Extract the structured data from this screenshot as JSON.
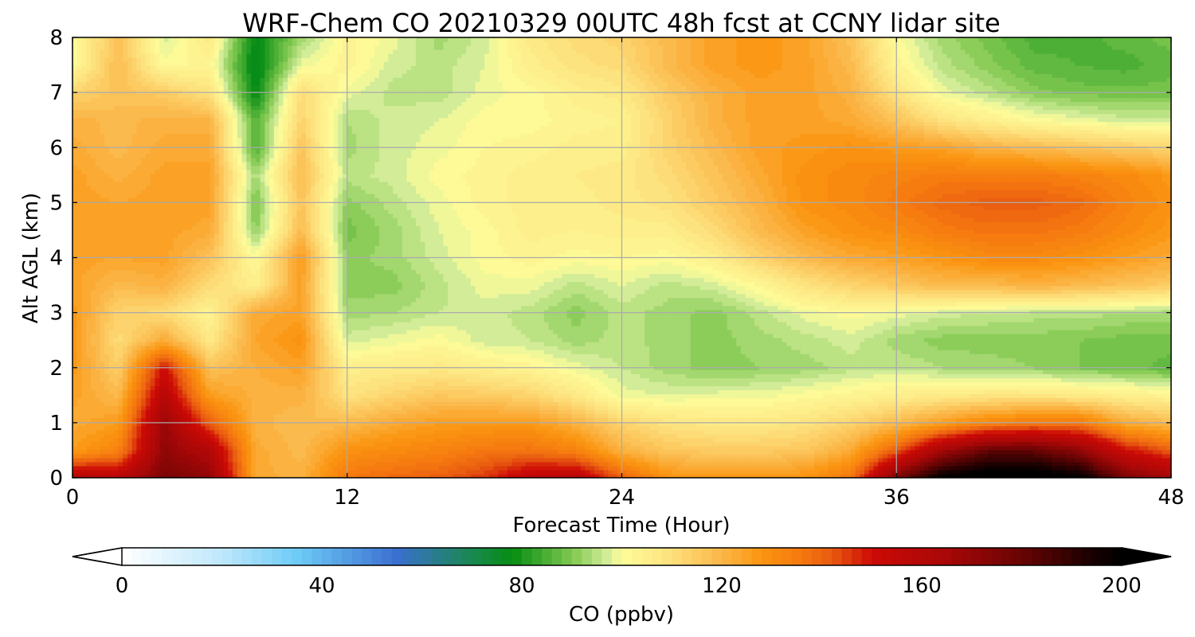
{
  "chart_data": {
    "type": "heatmap",
    "title": "WRF-Chem CO  20210329 00UTC 48h fcst at CCNY lidar site",
    "xlabel": "Forecast Time (Hour)",
    "ylabel": "Alt AGL (km)",
    "xlim": [
      0,
      48
    ],
    "ylim": [
      0,
      8
    ],
    "x_ticks": [
      "0",
      "12",
      "24",
      "36",
      "48"
    ],
    "y_ticks": [
      "0",
      "1",
      "2",
      "3",
      "4",
      "5",
      "6",
      "7",
      "8"
    ],
    "grid": true,
    "x": [
      0,
      2,
      4,
      6,
      8,
      10,
      12,
      14,
      16,
      18,
      20,
      22,
      24,
      26,
      28,
      30,
      32,
      34,
      36,
      38,
      40,
      42,
      44,
      46,
      48
    ],
    "y": [
      0,
      0.5,
      1,
      1.5,
      2,
      2.5,
      3,
      3.5,
      4,
      4.5,
      5,
      5.5,
      6,
      6.5,
      7,
      7.5,
      8
    ],
    "z_units": "ppbv",
    "z": [
      [
        160,
        158,
        175,
        170,
        122,
        120,
        135,
        138,
        140,
        145,
        155,
        158,
        140,
        128,
        126,
        126,
        128,
        135,
        175,
        200,
        205,
        205,
        200,
        175,
        165
      ],
      [
        125,
        132,
        170,
        160,
        122,
        118,
        128,
        130,
        132,
        135,
        136,
        132,
        120,
        115,
        114,
        114,
        115,
        122,
        140,
        165,
        180,
        180,
        170,
        150,
        140
      ],
      [
        122,
        125,
        168,
        140,
        120,
        117,
        118,
        122,
        125,
        126,
        126,
        120,
        112,
        108,
        106,
        106,
        108,
        112,
        118,
        125,
        132,
        135,
        135,
        122,
        118
      ],
      [
        124,
        118,
        158,
        125,
        120,
        120,
        108,
        112,
        115,
        114,
        112,
        106,
        98,
        97,
        98,
        98,
        100,
        102,
        104,
        106,
        107,
        107,
        106,
        104,
        102
      ],
      [
        126,
        113,
        150,
        116,
        121,
        124,
        104,
        105,
        106,
        104,
        102,
        98,
        95,
        92,
        90,
        91,
        92,
        94,
        95,
        93,
        92,
        91,
        89,
        88,
        86
      ],
      [
        126,
        110,
        122,
        106,
        123,
        128,
        96,
        98,
        100,
        96,
        95,
        92,
        94,
        92,
        90,
        92,
        94,
        96,
        92,
        90,
        90,
        90,
        89,
        88,
        88
      ],
      [
        126,
        112,
        110,
        102,
        122,
        124,
        92,
        93,
        95,
        96,
        94,
        90,
        94,
        92,
        90,
        94,
        98,
        100,
        98,
        96,
        95,
        94,
        94,
        93,
        92
      ],
      [
        124,
        118,
        120,
        110,
        104,
        124,
        90,
        90,
        94,
        98,
        98,
        94,
        97,
        94,
        96,
        101,
        108,
        112,
        115,
        118,
        118,
        120,
        118,
        116,
        114
      ],
      [
        124,
        123,
        124,
        116,
        100,
        126,
        90,
        92,
        96,
        100,
        102,
        100,
        101,
        100,
        104,
        112,
        118,
        122,
        124,
        127,
        130,
        130,
        128,
        125,
        122
      ],
      [
        124,
        124,
        124,
        122,
        90,
        118,
        88,
        92,
        97,
        100,
        104,
        103,
        104,
        104,
        110,
        118,
        124,
        128,
        130,
        134,
        136,
        136,
        134,
        130,
        126
      ],
      [
        124,
        123,
        124,
        124,
        88,
        116,
        90,
        94,
        98,
        102,
        104,
        104,
        106,
        108,
        114,
        120,
        128,
        130,
        134,
        138,
        140,
        140,
        138,
        132,
        128
      ],
      [
        124,
        120,
        124,
        124,
        92,
        118,
        94,
        96,
        100,
        102,
        104,
        105,
        106,
        110,
        116,
        122,
        128,
        130,
        132,
        134,
        134,
        134,
        132,
        130,
        126
      ],
      [
        122,
        118,
        122,
        122,
        84,
        116,
        92,
        96,
        98,
        101,
        102,
        104,
        104,
        112,
        118,
        124,
        126,
        128,
        126,
        124,
        120,
        118,
        116,
        114,
        112
      ],
      [
        120,
        118,
        120,
        120,
        84,
        112,
        93,
        96,
        97,
        100,
        100,
        102,
        103,
        112,
        120,
        124,
        124,
        122,
        116,
        108,
        104,
        100,
        98,
        96,
        96
      ],
      [
        112,
        116,
        114,
        108,
        76,
        110,
        98,
        94,
        94,
        98,
        100,
        104,
        106,
        114,
        120,
        124,
        124,
        120,
        108,
        98,
        94,
        90,
        88,
        88,
        88
      ],
      [
        100,
        118,
        100,
        102,
        74,
        98,
        102,
        96,
        94,
        97,
        104,
        108,
        110,
        118,
        124,
        126,
        124,
        118,
        102,
        94,
        90,
        86,
        85,
        84,
        86
      ],
      [
        100,
        116,
        96,
        106,
        76,
        92,
        102,
        98,
        92,
        96,
        106,
        110,
        112,
        118,
        124,
        126,
        124,
        116,
        100,
        92,
        88,
        84,
        84,
        86,
        88
      ]
    ],
    "colorbar": {
      "label": "CO  (ppbv)",
      "min": 0,
      "max": 200,
      "tick_values": [
        0,
        40,
        80,
        120,
        160,
        200
      ],
      "tick_labels": [
        "0",
        "40",
        "80",
        "120",
        "160",
        "200"
      ],
      "extend": "both",
      "colors": [
        [
          0,
          "#ffffff"
        ],
        [
          20,
          "#bfe8fb"
        ],
        [
          35,
          "#6dcbf6"
        ],
        [
          55,
          "#3b6fd0"
        ],
        [
          70,
          "#1a8850"
        ],
        [
          78,
          "#058c12"
        ],
        [
          90,
          "#80c850"
        ],
        [
          97,
          "#d2ec98"
        ],
        [
          100,
          "#fdfd9a"
        ],
        [
          110,
          "#fde07c"
        ],
        [
          120,
          "#fbb648"
        ],
        [
          128,
          "#fb9510"
        ],
        [
          136,
          "#f57810"
        ],
        [
          142,
          "#e85a10"
        ],
        [
          150,
          "#cc0a06"
        ],
        [
          165,
          "#a80808"
        ],
        [
          180,
          "#680404"
        ],
        [
          195,
          "#140000"
        ],
        [
          200,
          "#000000"
        ]
      ],
      "under_color": "#ffffff",
      "over_color": "#000000"
    }
  }
}
